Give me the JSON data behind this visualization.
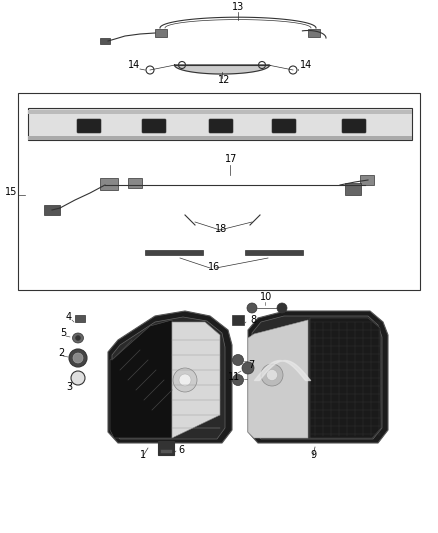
{
  "bg_color": "#ffffff",
  "fig_width": 4.38,
  "fig_height": 5.33,
  "dpi": 100,
  "gray": "#333333",
  "lgray": "#888888",
  "black": "#000000",
  "fs": 7
}
